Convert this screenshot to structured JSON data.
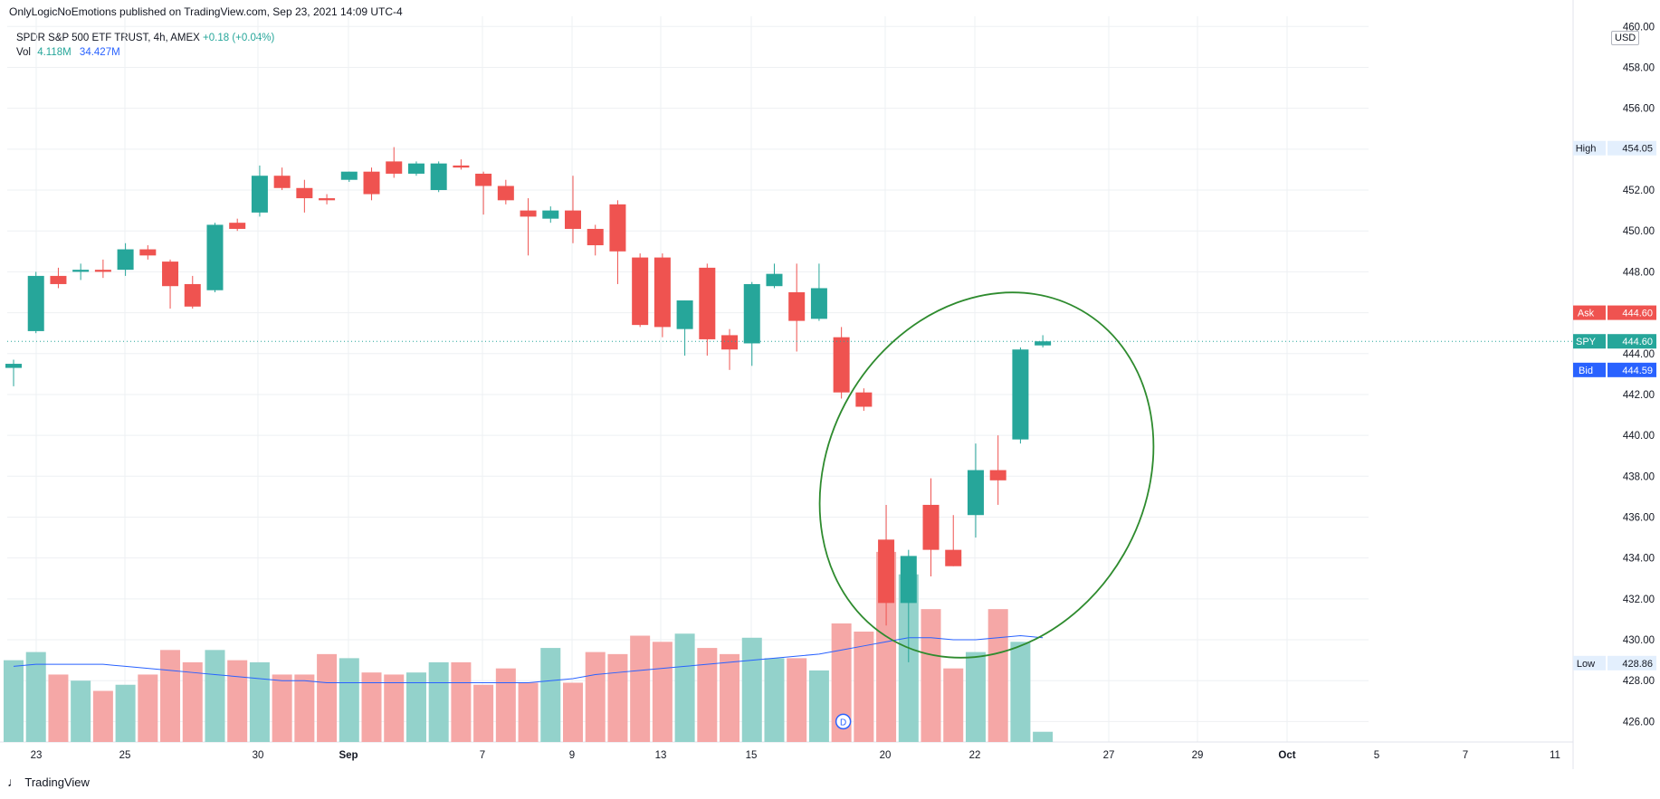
{
  "header": {
    "attribution": "OnlyLogicNoEmotions published on TradingView.com, Sep 23, 2021 14:09 UTC-4",
    "instrument": "SPDR S&P 500 ETF TRUST, 4h, AMEX",
    "change": "+0.18 (+0.04%)",
    "vol_label": "Vol",
    "vol_value": "4.118M",
    "vol_ma": "34.427M",
    "currency": "USD"
  },
  "footer": {
    "logo": "♩",
    "brand": "TradingView"
  },
  "colors": {
    "up": "#26a69a",
    "down": "#ef5350",
    "up_vol": "#93d2cb",
    "down_vol": "#f5a7a6",
    "ma": "#2962ff",
    "ellipse": "#2e8b2e"
  },
  "chart_data": {
    "type": "candlestick",
    "y_ticks": [
      "426.00",
      "428.00",
      "430.00",
      "432.00",
      "434.00",
      "436.00",
      "438.00",
      "440.00",
      "442.00",
      "444.00",
      "446.00",
      "448.00",
      "450.00",
      "452.00",
      "454.00",
      "456.00",
      "458.00",
      "460.00"
    ],
    "x_ticks": [
      "23",
      "25",
      "30",
      "Sep",
      "7",
      "9",
      "13",
      "15",
      "20",
      "22",
      "27",
      "29",
      "Oct",
      "5",
      "7",
      "11"
    ],
    "ylim": [
      425,
      460.5
    ],
    "price_labels": [
      {
        "tag": "High",
        "value": "454.05",
        "style": "neutral"
      },
      {
        "tag": "Ask",
        "value": "444.60",
        "style": "down"
      },
      {
        "tag": "SPY",
        "value": "444.60",
        "style": "up"
      },
      {
        "tag": "Bid",
        "value": "444.59",
        "style": "bid"
      },
      {
        "tag": "Low",
        "value": "428.86",
        "style": "neutral"
      }
    ],
    "candles": [
      {
        "o": 443.3,
        "h": 443.7,
        "l": 442.4,
        "c": 443.5
      },
      {
        "o": 445.1,
        "h": 448.0,
        "l": 445.0,
        "c": 447.8
      },
      {
        "o": 447.8,
        "h": 448.2,
        "l": 447.2,
        "c": 447.4
      },
      {
        "o": 448.0,
        "h": 448.4,
        "l": 447.6,
        "c": 448.1
      },
      {
        "o": 448.1,
        "h": 448.6,
        "l": 447.7,
        "c": 448.0
      },
      {
        "o": 448.1,
        "h": 449.4,
        "l": 447.8,
        "c": 449.1
      },
      {
        "o": 449.1,
        "h": 449.3,
        "l": 448.6,
        "c": 448.8
      },
      {
        "o": 448.5,
        "h": 448.6,
        "l": 446.2,
        "c": 447.3
      },
      {
        "o": 447.4,
        "h": 447.8,
        "l": 446.2,
        "c": 446.3
      },
      {
        "o": 447.1,
        "h": 450.4,
        "l": 447.0,
        "c": 450.3
      },
      {
        "o": 450.4,
        "h": 450.6,
        "l": 450.0,
        "c": 450.1
      },
      {
        "o": 450.9,
        "h": 453.2,
        "l": 450.7,
        "c": 452.7
      },
      {
        "o": 452.7,
        "h": 453.1,
        "l": 452.0,
        "c": 452.1
      },
      {
        "o": 452.1,
        "h": 452.5,
        "l": 450.9,
        "c": 451.6
      },
      {
        "o": 451.6,
        "h": 451.8,
        "l": 451.3,
        "c": 451.5
      },
      {
        "o": 452.5,
        "h": 452.9,
        "l": 452.4,
        "c": 452.9
      },
      {
        "o": 452.9,
        "h": 453.1,
        "l": 451.5,
        "c": 451.8
      },
      {
        "o": 453.4,
        "h": 454.1,
        "l": 452.6,
        "c": 452.8
      },
      {
        "o": 452.8,
        "h": 453.4,
        "l": 452.7,
        "c": 453.3
      },
      {
        "o": 452.0,
        "h": 453.4,
        "l": 451.9,
        "c": 453.3
      },
      {
        "o": 453.2,
        "h": 453.5,
        "l": 453.0,
        "c": 453.1
      },
      {
        "o": 452.8,
        "h": 452.9,
        "l": 450.8,
        "c": 452.2
      },
      {
        "o": 452.2,
        "h": 452.5,
        "l": 451.3,
        "c": 451.5
      },
      {
        "o": 451.0,
        "h": 451.6,
        "l": 448.8,
        "c": 450.7
      },
      {
        "o": 450.6,
        "h": 451.2,
        "l": 450.4,
        "c": 451.0
      },
      {
        "o": 451.0,
        "h": 452.7,
        "l": 449.4,
        "c": 450.1
      },
      {
        "o": 450.1,
        "h": 450.3,
        "l": 448.8,
        "c": 449.3
      },
      {
        "o": 451.3,
        "h": 451.5,
        "l": 447.4,
        "c": 449.0
      },
      {
        "o": 448.7,
        "h": 448.9,
        "l": 445.3,
        "c": 445.4
      },
      {
        "o": 448.7,
        "h": 448.9,
        "l": 444.8,
        "c": 445.3
      },
      {
        "o": 445.2,
        "h": 446.6,
        "l": 443.9,
        "c": 446.6
      },
      {
        "o": 448.2,
        "h": 448.4,
        "l": 443.9,
        "c": 444.7
      },
      {
        "o": 444.9,
        "h": 445.2,
        "l": 443.2,
        "c": 444.2
      },
      {
        "o": 444.5,
        "h": 447.5,
        "l": 443.4,
        "c": 447.4
      },
      {
        "o": 447.3,
        "h": 448.4,
        "l": 447.2,
        "c": 447.9
      },
      {
        "o": 447.0,
        "h": 448.4,
        "l": 444.1,
        "c": 445.6
      },
      {
        "o": 445.7,
        "h": 448.4,
        "l": 445.6,
        "c": 447.2
      },
      {
        "o": 444.8,
        "h": 445.3,
        "l": 441.8,
        "c": 442.1
      },
      {
        "o": 442.1,
        "h": 442.3,
        "l": 441.2,
        "c": 441.4
      },
      {
        "o": 434.9,
        "h": 436.6,
        "l": 430.7,
        "c": 431.8
      },
      {
        "o": 431.8,
        "h": 434.4,
        "l": 428.9,
        "c": 434.1
      },
      {
        "o": 436.6,
        "h": 437.9,
        "l": 433.1,
        "c": 434.4
      },
      {
        "o": 434.4,
        "h": 436.1,
        "l": 433.6,
        "c": 433.6
      },
      {
        "o": 436.1,
        "h": 439.6,
        "l": 435.0,
        "c": 438.3
      },
      {
        "o": 438.3,
        "h": 440.0,
        "l": 436.6,
        "c": 437.8
      },
      {
        "o": 439.8,
        "h": 444.3,
        "l": 439.6,
        "c": 444.2
      },
      {
        "o": 444.4,
        "h": 444.9,
        "l": 444.3,
        "c": 444.6
      }
    ],
    "volume": {
      "max_y": 430.0,
      "values": [
        429.0,
        429.4,
        428.3,
        428.0,
        427.5,
        427.8,
        428.3,
        429.5,
        428.9,
        429.5,
        429.0,
        428.9,
        428.3,
        428.3,
        429.3,
        429.1,
        428.4,
        428.3,
        428.4,
        428.9,
        428.9,
        427.8,
        428.6,
        427.9,
        429.6,
        427.9,
        429.4,
        429.3,
        430.2,
        429.9,
        430.3,
        429.6,
        429.3,
        430.1,
        429.1,
        429.1,
        428.5,
        430.8,
        430.4,
        434.3,
        433.2,
        431.5,
        428.6,
        429.4,
        431.5,
        429.9,
        425.5
      ],
      "ma": [
        428.7,
        428.8,
        428.8,
        428.8,
        428.8,
        428.7,
        428.6,
        428.5,
        428.4,
        428.3,
        428.2,
        428.1,
        428.0,
        428.0,
        427.9,
        427.9,
        427.9,
        427.9,
        427.9,
        427.9,
        427.9,
        427.9,
        427.9,
        427.9,
        428.0,
        428.1,
        428.3,
        428.4,
        428.5,
        428.6,
        428.7,
        428.8,
        428.9,
        429.0,
        429.1,
        429.2,
        429.3,
        429.5,
        429.7,
        429.9,
        430.1,
        430.1,
        430.0,
        430.0,
        430.1,
        430.2,
        430.1
      ]
    }
  }
}
